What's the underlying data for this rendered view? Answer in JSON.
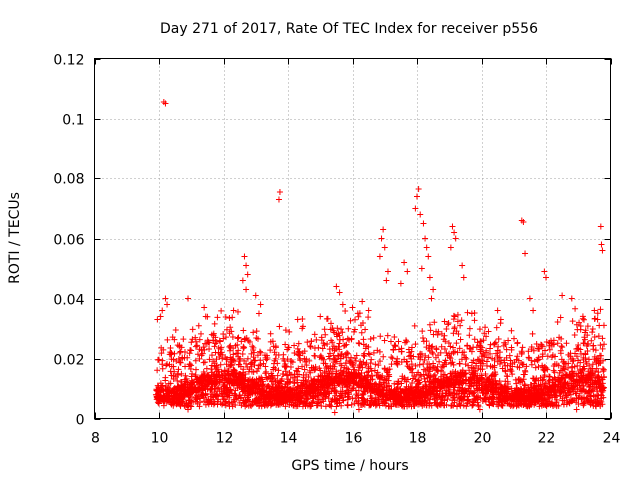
{
  "chart_data": {
    "type": "scatter",
    "title": "Day 271 of 2017, Rate Of TEC Index for receiver p556",
    "xlabel": "GPS time / hours",
    "ylabel": "ROTI / TECUs",
    "xlim": [
      8,
      24
    ],
    "ylim": [
      0,
      0.12
    ],
    "xticks": [
      8,
      10,
      12,
      14,
      16,
      18,
      20,
      22,
      24
    ],
    "yticks": [
      0,
      0.02,
      0.04,
      0.06,
      0.08,
      0.1,
      0.12
    ],
    "xtick_labels": [
      "8",
      "10",
      "12",
      "14",
      "16",
      "18",
      "20",
      "22",
      "24"
    ],
    "ytick_labels": [
      "0",
      "0.02",
      "0.04",
      "0.06",
      "0.08",
      "0.1",
      "0.12"
    ],
    "grid": true,
    "marker": "+",
    "color": "#ff0000",
    "x_range_of_data": [
      9.9,
      23.8
    ],
    "typical_y_range": [
      0.004,
      0.03
    ],
    "series": [
      {
        "name": "ROTI",
        "points": [
          [
            10.15,
            0.1055
          ],
          [
            10.2,
            0.105
          ],
          [
            13.75,
            0.0755
          ],
          [
            13.72,
            0.073
          ],
          [
            18.05,
            0.0765
          ],
          [
            18.0,
            0.074
          ],
          [
            17.95,
            0.07
          ],
          [
            18.1,
            0.068
          ],
          [
            18.2,
            0.065
          ],
          [
            18.25,
            0.06
          ],
          [
            18.3,
            0.057
          ],
          [
            18.35,
            0.054
          ],
          [
            18.15,
            0.05
          ],
          [
            18.4,
            0.047
          ],
          [
            18.5,
            0.043
          ],
          [
            18.45,
            0.04
          ],
          [
            19.1,
            0.064
          ],
          [
            19.15,
            0.062
          ],
          [
            19.2,
            0.06
          ],
          [
            19.05,
            0.057
          ],
          [
            19.4,
            0.051
          ],
          [
            19.45,
            0.047
          ],
          [
            21.25,
            0.066
          ],
          [
            21.3,
            0.0655
          ],
          [
            21.35,
            0.055
          ],
          [
            23.7,
            0.064
          ],
          [
            23.72,
            0.058
          ],
          [
            23.75,
            0.056
          ],
          [
            16.95,
            0.063
          ],
          [
            16.9,
            0.06
          ],
          [
            17.0,
            0.057
          ],
          [
            16.85,
            0.054
          ],
          [
            17.1,
            0.049
          ],
          [
            17.05,
            0.046
          ],
          [
            12.65,
            0.054
          ],
          [
            12.7,
            0.051
          ],
          [
            12.75,
            0.048
          ],
          [
            12.6,
            0.046
          ],
          [
            12.7,
            0.043
          ],
          [
            21.95,
            0.049
          ],
          [
            22.0,
            0.047
          ],
          [
            17.6,
            0.052
          ],
          [
            17.7,
            0.049
          ],
          [
            17.5,
            0.045
          ],
          [
            15.5,
            0.044
          ],
          [
            15.6,
            0.042
          ],
          [
            15.7,
            0.038
          ],
          [
            10.2,
            0.04
          ],
          [
            10.25,
            0.038
          ],
          [
            10.1,
            0.036
          ],
          [
            10.05,
            0.034
          ],
          [
            9.95,
            0.033
          ],
          [
            10.9,
            0.04
          ],
          [
            11.4,
            0.037
          ],
          [
            11.45,
            0.034
          ],
          [
            13.0,
            0.041
          ],
          [
            13.15,
            0.038
          ],
          [
            13.1,
            0.035
          ],
          [
            14.3,
            0.033
          ],
          [
            15.0,
            0.034
          ],
          [
            16.0,
            0.037
          ],
          [
            16.3,
            0.039
          ],
          [
            16.5,
            0.036
          ],
          [
            19.7,
            0.035
          ],
          [
            20.5,
            0.036
          ],
          [
            20.6,
            0.033
          ],
          [
            21.5,
            0.04
          ],
          [
            21.6,
            0.036
          ],
          [
            22.5,
            0.041
          ],
          [
            22.8,
            0.04
          ],
          [
            23.5,
            0.036
          ],
          [
            23.6,
            0.033
          ],
          [
            23.65,
            0.031
          ],
          [
            16.2,
            0.003
          ],
          [
            15.45,
            0.002
          ],
          [
            15.5,
            0.004
          ],
          [
            10.9,
            0.003
          ],
          [
            11.0,
            0.004
          ],
          [
            19.95,
            0.003
          ],
          [
            22.95,
            0.003
          ]
        ]
      }
    ]
  }
}
